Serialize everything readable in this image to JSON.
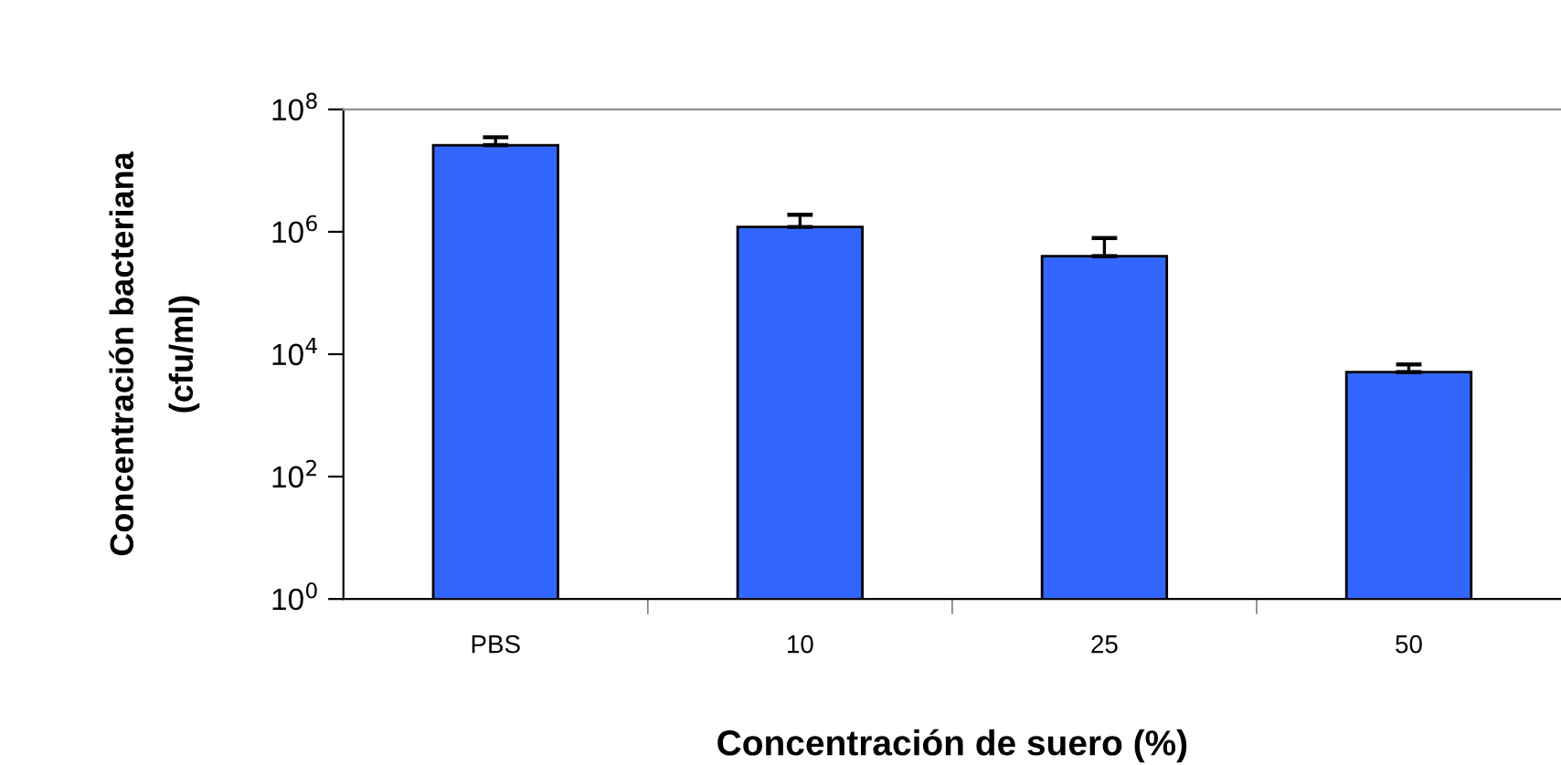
{
  "chart_data": {
    "type": "bar",
    "xlabel": "Concentración de suero (%)",
    "ylabel": "Concentración bacteriana\n(cfu/ml)",
    "categories": [
      "PBS",
      "10",
      "25",
      "50"
    ],
    "values": [
      26000000.0,
      1200000.0,
      400000.0,
      5100.0
    ],
    "errors": [
      [
        26000000.0,
        35000000.0
      ],
      [
        1200000.0,
        1900000.0
      ],
      [
        400000.0,
        790000.0
      ],
      [
        5100.0,
        6800.0
      ]
    ],
    "color": "#3366ff",
    "log": true,
    "ylim": [
      1,
      100000000.0
    ],
    "yticks": [
      {
        "value": 1,
        "label": "10$^{0}$"
      },
      {
        "value": 100,
        "label": "10$^{2}$"
      },
      {
        "value": 10000,
        "label": "10$^{4}$"
      },
      {
        "value": 1000000,
        "label": "10$^{6}$"
      },
      {
        "value": 100000000,
        "label": "10$^{8}$"
      }
    ],
    "grid": false,
    "legend": false
  }
}
